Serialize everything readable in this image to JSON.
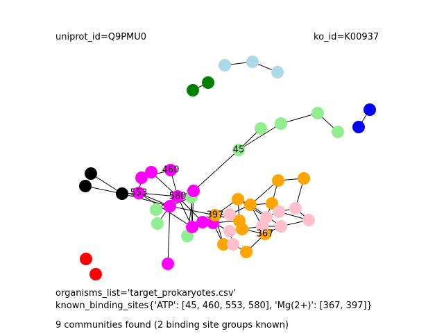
{
  "header": {
    "uniprot_label": "uniprot_id=Q9PMU0",
    "ko_label": "ko_id=K00937"
  },
  "footer": {
    "organisms_label": "organisms_list='target_prokaryotes.csv'",
    "binding_sites_label": "known_binding_sites{'ATP': [45, 460, 553, 580], 'Mg(2+)': [367, 397]}",
    "communities_label": "9 communities found (2 binding site groups known)"
  },
  "colors": {
    "lightblue": "#add8e6",
    "green": "#008000",
    "blue": "#0000ff",
    "lightgreen": "#90ee90",
    "black": "#000000",
    "magenta": "#ff00ff",
    "orange": "#ffa500",
    "pink": "#ffc0cb",
    "red": "#ff0000"
  },
  "graph": {
    "node_labels": [
      {
        "node": "n45",
        "text": "45"
      },
      {
        "node": "m460",
        "text": "460"
      },
      {
        "node": "m553",
        "text": "553"
      },
      {
        "node": "m580",
        "text": "580"
      },
      {
        "node": "o397",
        "text": "397"
      },
      {
        "node": "o367",
        "text": "367"
      }
    ]
  }
}
